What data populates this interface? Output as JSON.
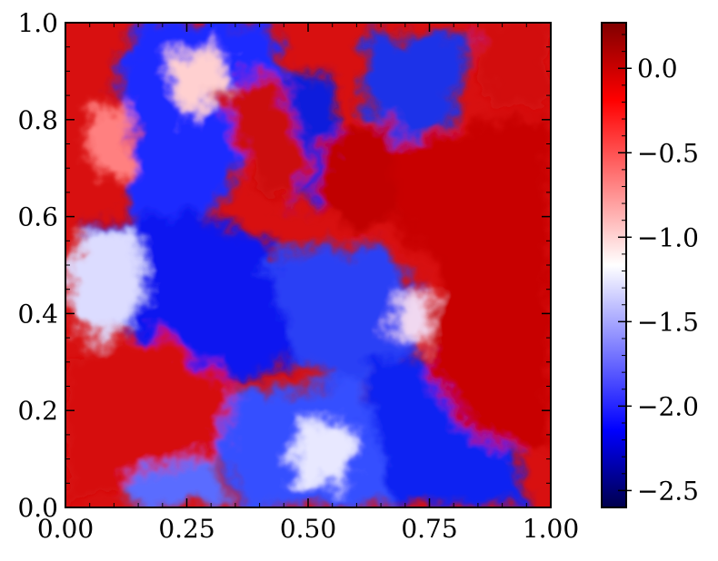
{
  "chart_data": {
    "type": "heatmap",
    "title": "",
    "xlabel": "",
    "ylabel": "",
    "xlim": [
      0.0,
      1.0
    ],
    "ylim": [
      0.0,
      1.0
    ],
    "x_ticks": [
      "0.00",
      "0.25",
      "0.50",
      "0.75",
      "1.00"
    ],
    "y_ticks": [
      "0.0",
      "0.2",
      "0.4",
      "0.6",
      "0.8",
      "1.0"
    ],
    "colorbar": {
      "range": [
        -2.6,
        0.27
      ],
      "ticks": [
        {
          "value": 0.0,
          "label": "0.0"
        },
        {
          "value": -0.5,
          "label": "−0.5"
        },
        {
          "value": -1.0,
          "label": "−1.0"
        },
        {
          "value": -1.5,
          "label": "−1.5"
        },
        {
          "value": -2.0,
          "label": "−2.0"
        },
        {
          "value": -2.5,
          "label": "−2.5"
        }
      ],
      "colormap": "seismic",
      "colors": [
        "#00004c",
        "#0000ff",
        "#ffffff",
        "#ff0000",
        "#800000"
      ]
    },
    "grid": false,
    "description_field": "turbulent mixing field: red regions near top-left, top-right, bottom-left, bottom-right and right side; blue regions in center-left, center, upper-middle and lower-middle"
  }
}
